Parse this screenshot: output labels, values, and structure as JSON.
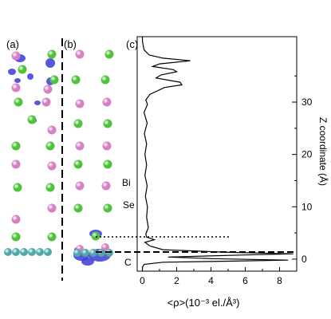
{
  "panels": {
    "a": "(a)",
    "b": "(b)",
    "c": "(c)"
  },
  "atom_labels": {
    "bi": "Bi",
    "se": "Se",
    "c": "C"
  },
  "colors": {
    "bi": "#d77fc4",
    "se": "#4ec23b",
    "c": "#4fa8a8",
    "density": "#3b3bd6"
  },
  "chart_data": {
    "type": "line",
    "xlabel": "<ρ>(10⁻³ el./Å³)",
    "ylabel": "Z coordinate (Å)",
    "xlim": [
      -0.3,
      9.0
    ],
    "ylim": [
      -2.3,
      42.5
    ],
    "xticks": [
      0,
      2,
      4,
      6,
      8
    ],
    "yticks": [
      0,
      10,
      20,
      30
    ],
    "series": [
      {
        "points": [
          [
            0,
            -2.3
          ],
          [
            0.01,
            -1.5
          ],
          [
            0.1,
            -1.0
          ],
          [
            1.2,
            -0.6
          ],
          [
            5,
            -0.4
          ],
          [
            8.5,
            -0.2
          ],
          [
            4,
            0.1
          ],
          [
            1.5,
            0.4
          ],
          [
            6,
            0.8
          ],
          [
            8.8,
            1.0
          ],
          [
            5,
            1.3
          ],
          [
            1.2,
            1.8
          ],
          [
            0.45,
            2.5
          ],
          [
            0.15,
            3.2
          ],
          [
            0.7,
            3.7
          ],
          [
            0.25,
            4.2
          ],
          [
            0.2,
            4.8
          ],
          [
            0.35,
            6
          ],
          [
            0.25,
            8
          ],
          [
            0.3,
            10
          ],
          [
            0.18,
            12
          ],
          [
            0.28,
            14
          ],
          [
            0.15,
            16
          ],
          [
            0.25,
            18
          ],
          [
            0.15,
            20
          ],
          [
            0.25,
            22
          ],
          [
            0.12,
            24
          ],
          [
            0.28,
            26
          ],
          [
            0.1,
            28
          ],
          [
            0.3,
            29.6
          ],
          [
            0.2,
            30.4
          ],
          [
            0.45,
            31.5
          ],
          [
            1.3,
            32.8
          ],
          [
            2.3,
            33.3
          ],
          [
            2.2,
            33.8
          ],
          [
            0.8,
            34.6
          ],
          [
            1.1,
            35.2
          ],
          [
            2.0,
            35.8
          ],
          [
            1.8,
            36.2
          ],
          [
            0.6,
            36.8
          ],
          [
            1.0,
            37.3
          ],
          [
            2.8,
            37.9
          ],
          [
            1.2,
            38.4
          ],
          [
            0.4,
            39
          ],
          [
            0.1,
            40
          ],
          [
            0.01,
            41.5
          ],
          [
            0,
            42.5
          ]
        ]
      }
    ]
  }
}
